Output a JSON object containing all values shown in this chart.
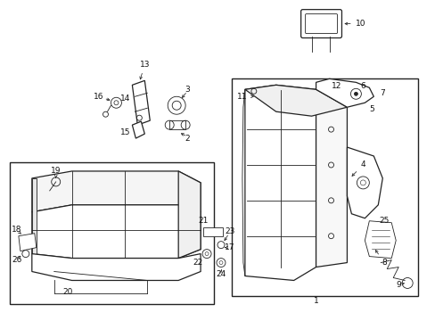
{
  "bg_color": "#ffffff",
  "line_color": "#222222",
  "label_color": "#111111",
  "fig_w": 4.89,
  "fig_h": 3.6,
  "dpi": 100
}
